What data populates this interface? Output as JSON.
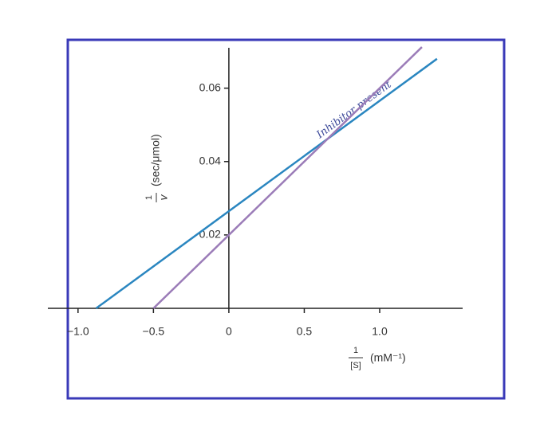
{
  "chart_data": {
    "type": "line",
    "x_label": {
      "numerator": "1",
      "denominator": "[S]",
      "units": "(mM⁻¹)"
    },
    "y_label": {
      "numerator": "1",
      "denominator": "v",
      "units": "(sec/μmol)"
    },
    "series": [
      {
        "name": "Inhibitor present",
        "color": "#2a86c0",
        "x": [
          -0.88,
          1.38
        ],
        "values": [
          0,
          0.068
        ]
      },
      {
        "color": "#9b7cb8",
        "x": [
          -0.5,
          1.28
        ],
        "values": [
          0,
          0.0712
        ]
      }
    ],
    "xlim": [
      -1.2,
      1.55
    ],
    "ylim": [
      0,
      0.071
    ],
    "xticks": [
      {
        "value": -1.0,
        "label": "−1.0"
      },
      {
        "value": -0.5,
        "label": "−0.5"
      },
      0,
      0.5,
      {
        "value": 1.0,
        "label": "1.0"
      }
    ],
    "yticks": [
      0.02,
      0.04,
      0.06
    ],
    "frame_color": "#3a3ab8"
  }
}
